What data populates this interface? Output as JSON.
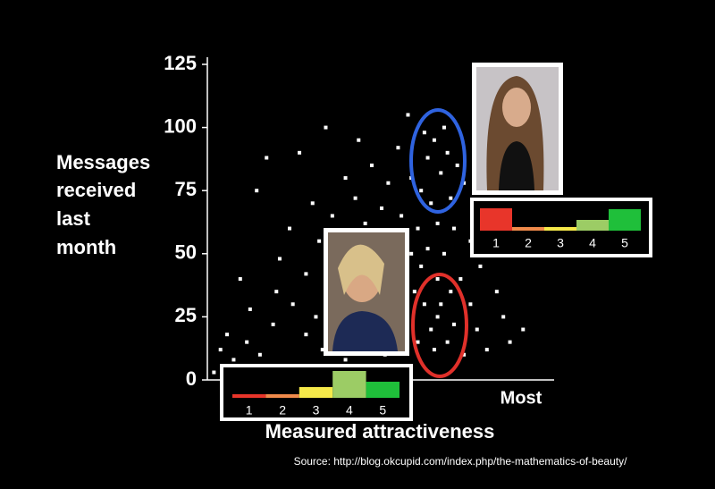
{
  "chart_data": [
    {
      "type": "scatter",
      "ylabel": [
        "Messages",
        "received",
        "last",
        "month"
      ],
      "xlabel": "Measured attractiveness",
      "x_end_label": "Most",
      "xlim": [
        0,
        100
      ],
      "ylim": [
        0,
        125
      ],
      "yticks": [
        0,
        25,
        50,
        75,
        100,
        125
      ],
      "color": "#ffffff",
      "x": [
        2,
        4,
        5,
        6,
        8,
        10,
        12,
        13,
        15,
        16,
        18,
        20,
        21,
        22,
        24,
        25,
        26,
        28,
        30,
        30,
        32,
        33,
        34,
        35,
        36,
        38,
        38,
        40,
        40,
        42,
        42,
        43,
        44,
        45,
        45,
        46,
        47,
        48,
        48,
        50,
        50,
        51,
        52,
        52,
        53,
        54,
        55,
        55,
        56,
        56,
        57,
        58,
        58,
        59,
        60,
        60,
        61,
        62,
        62,
        63,
        64,
        64,
        65,
        65,
        66,
        66,
        67,
        67,
        68,
        68,
        69,
        69,
        70,
        70,
        70,
        71,
        71,
        72,
        72,
        73,
        73,
        74,
        74,
        75,
        75,
        76,
        77,
        78,
        78,
        80,
        80,
        82,
        83,
        85,
        86,
        88,
        90,
        92,
        94,
        96
      ],
      "y": [
        3,
        12,
        5,
        18,
        8,
        40,
        15,
        28,
        75,
        10,
        88,
        22,
        35,
        48,
        5,
        60,
        30,
        90,
        18,
        42,
        70,
        25,
        55,
        12,
        100,
        38,
        65,
        20,
        48,
        80,
        8,
        30,
        58,
        22,
        72,
        95,
        40,
        15,
        62,
        30,
        85,
        50,
        20,
        35,
        68,
        10,
        45,
        78,
        28,
        55,
        18,
        92,
        40,
        65,
        5,
        25,
        105,
        50,
        80,
        35,
        60,
        15,
        75,
        45,
        98,
        30,
        88,
        52,
        20,
        70,
        12,
        95,
        40,
        62,
        25,
        82,
        30,
        100,
        50,
        15,
        90,
        35,
        72,
        22,
        60,
        85,
        40,
        10,
        78,
        30,
        55,
        20,
        45,
        12,
        65,
        35,
        25,
        15,
        50,
        20
      ]
    },
    {
      "type": "bar",
      "categories": [
        "1",
        "2",
        "3",
        "4",
        "5"
      ],
      "values": [
        4,
        4,
        12,
        30,
        18
      ],
      "colors": [
        "#e8352a",
        "#f08a4b",
        "#f5e94a",
        "#9ccc65",
        "#1fbf3a"
      ]
    },
    {
      "type": "bar",
      "categories": [
        "1",
        "2",
        "3",
        "4",
        "5"
      ],
      "values": [
        25,
        4,
        4,
        12,
        24
      ],
      "colors": [
        "#e8352a",
        "#f08a4b",
        "#f5e94a",
        "#9ccc65",
        "#1fbf3a"
      ]
    }
  ],
  "source": "Source: http://blog.okcupid.com/index.php/the-mathematics-of-beauty/"
}
